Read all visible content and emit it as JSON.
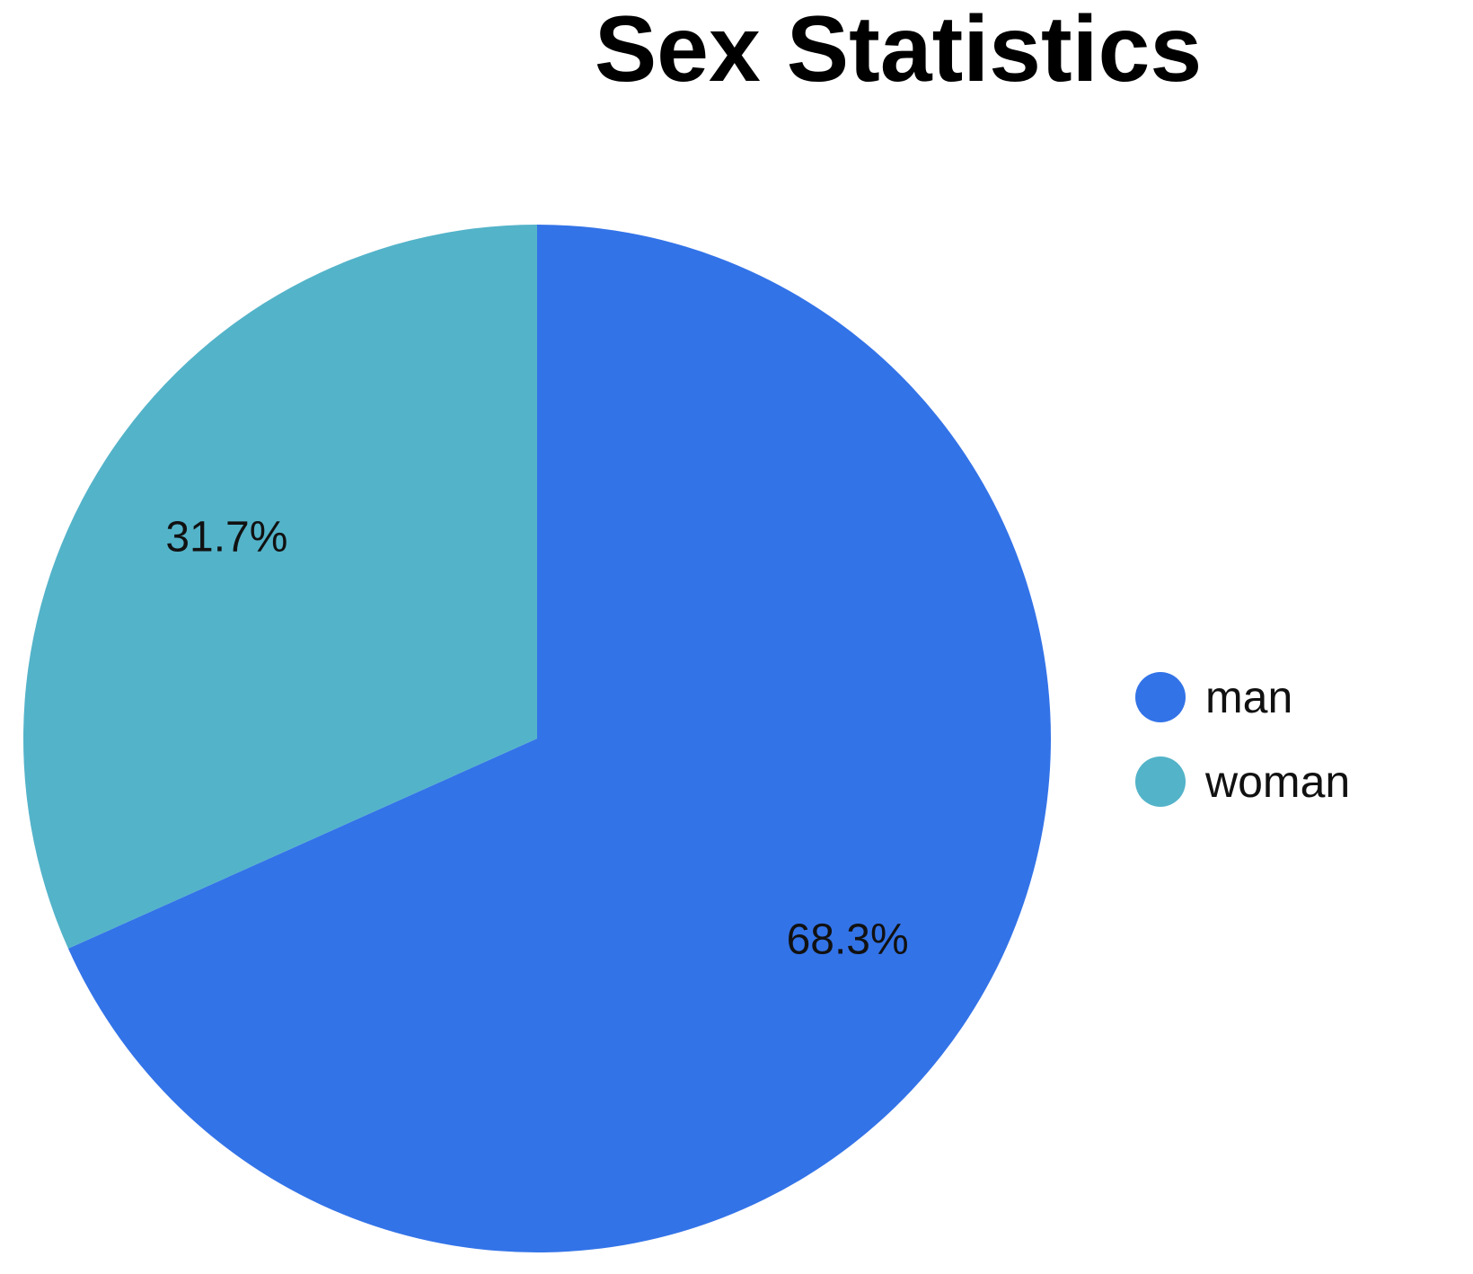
{
  "chart_data": {
    "type": "pie",
    "title": "Sex Statistics",
    "categories": [
      "man",
      "woman"
    ],
    "values": [
      68.3,
      31.7
    ],
    "data_labels": [
      "68.3%",
      "31.7%"
    ],
    "colors": [
      "#3373e8",
      "#53b3c9"
    ],
    "start_angle": "top",
    "direction": "clockwise",
    "legend_position": "right"
  }
}
